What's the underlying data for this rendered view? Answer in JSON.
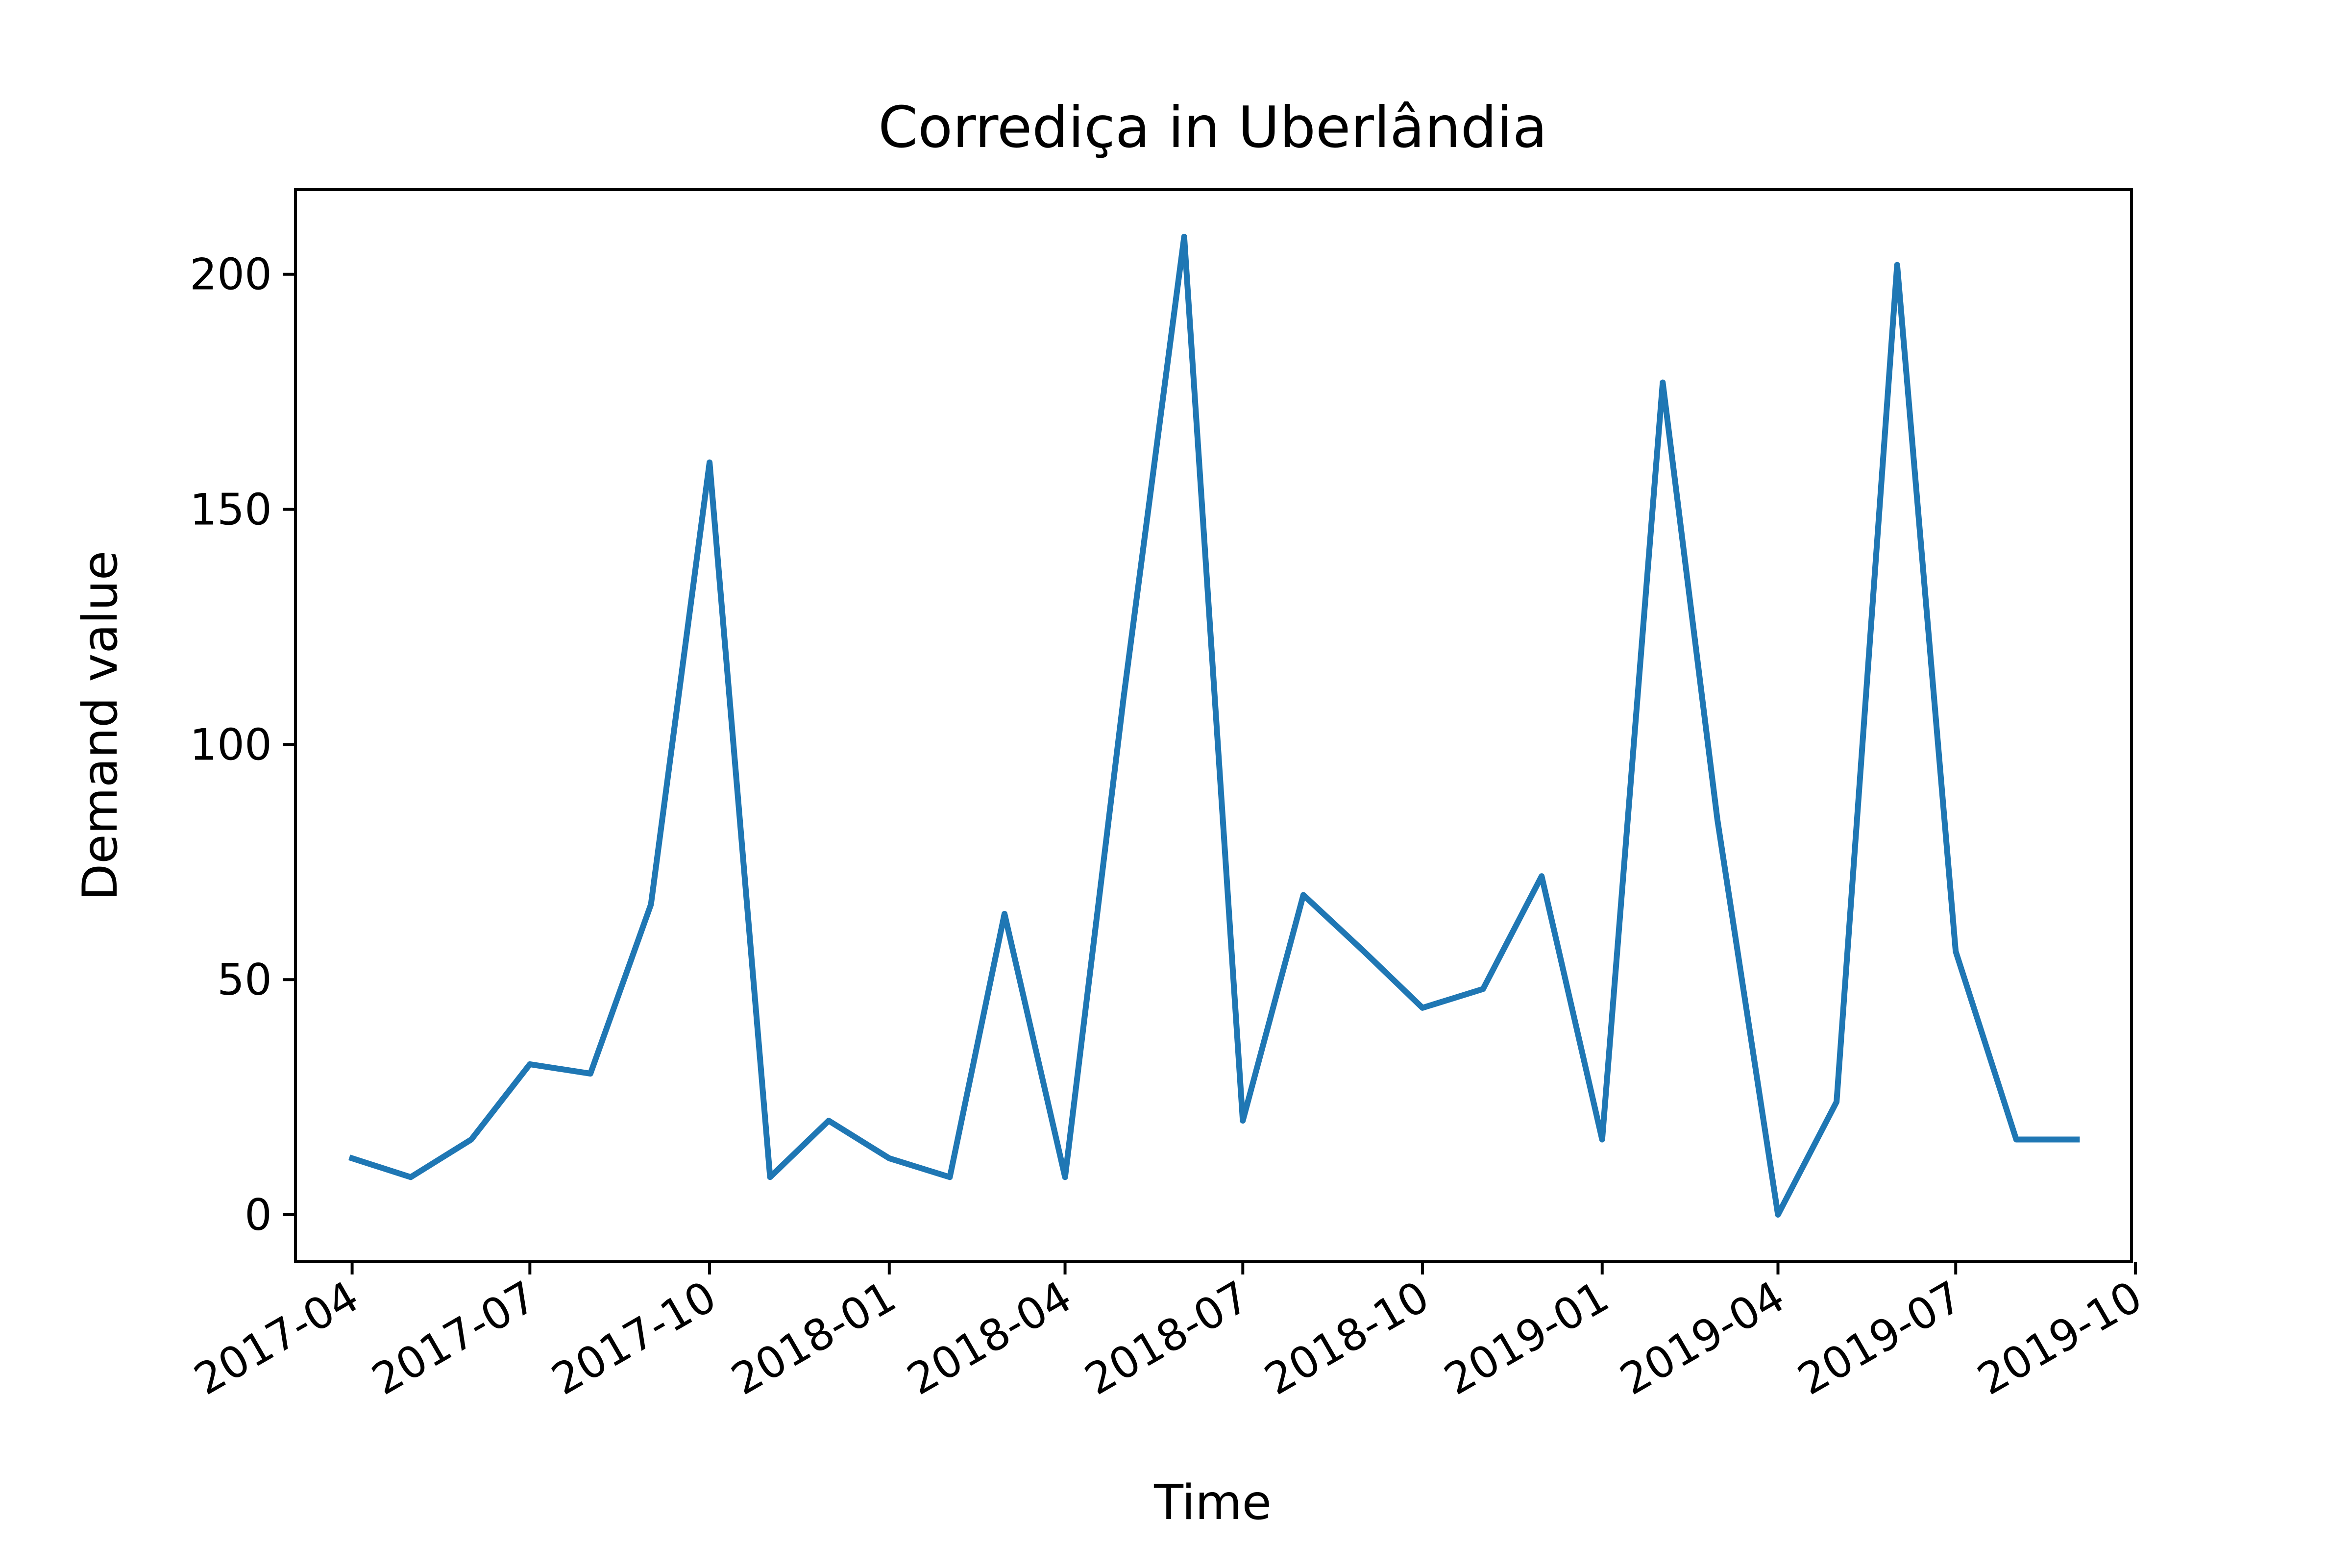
{
  "chart_data": {
    "type": "line",
    "title": "Corrediça in Uberlândia",
    "xlabel": "Time",
    "ylabel": "Demand value",
    "x_ticks": [
      "2017-04",
      "2017-07",
      "2017-10",
      "2018-01",
      "2018-04",
      "2018-07",
      "2018-10",
      "2019-01",
      "2019-04",
      "2019-07",
      "2019-10"
    ],
    "y_ticks": [
      0,
      50,
      100,
      150,
      200
    ],
    "ylim": [
      -10,
      218
    ],
    "xlim": [
      "2017-03-03",
      "2019-09-29"
    ],
    "grid": false,
    "series": [
      {
        "color": "#1f77b4",
        "x": [
          "2017-04-01",
          "2017-05-01",
          "2017-06-01",
          "2017-07-01",
          "2017-08-01",
          "2017-09-01",
          "2017-10-01",
          "2017-11-01",
          "2017-12-01",
          "2018-01-01",
          "2018-02-01",
          "2018-03-01",
          "2018-04-01",
          "2018-05-01",
          "2018-06-01",
          "2018-07-01",
          "2018-08-01",
          "2018-09-01",
          "2018-10-01",
          "2018-11-01",
          "2018-12-01",
          "2019-01-01",
          "2019-02-01",
          "2019-03-01",
          "2019-04-01",
          "2019-05-01",
          "2019-06-01",
          "2019-07-01",
          "2019-08-01",
          "2019-09-01"
        ],
        "values": [
          12,
          8,
          16,
          32,
          30,
          66,
          160,
          8,
          20,
          12,
          8,
          64,
          8,
          110,
          208,
          20,
          68,
          56,
          44,
          48,
          72,
          16,
          177,
          84,
          0,
          24,
          202,
          56,
          16,
          16
        ]
      }
    ]
  }
}
